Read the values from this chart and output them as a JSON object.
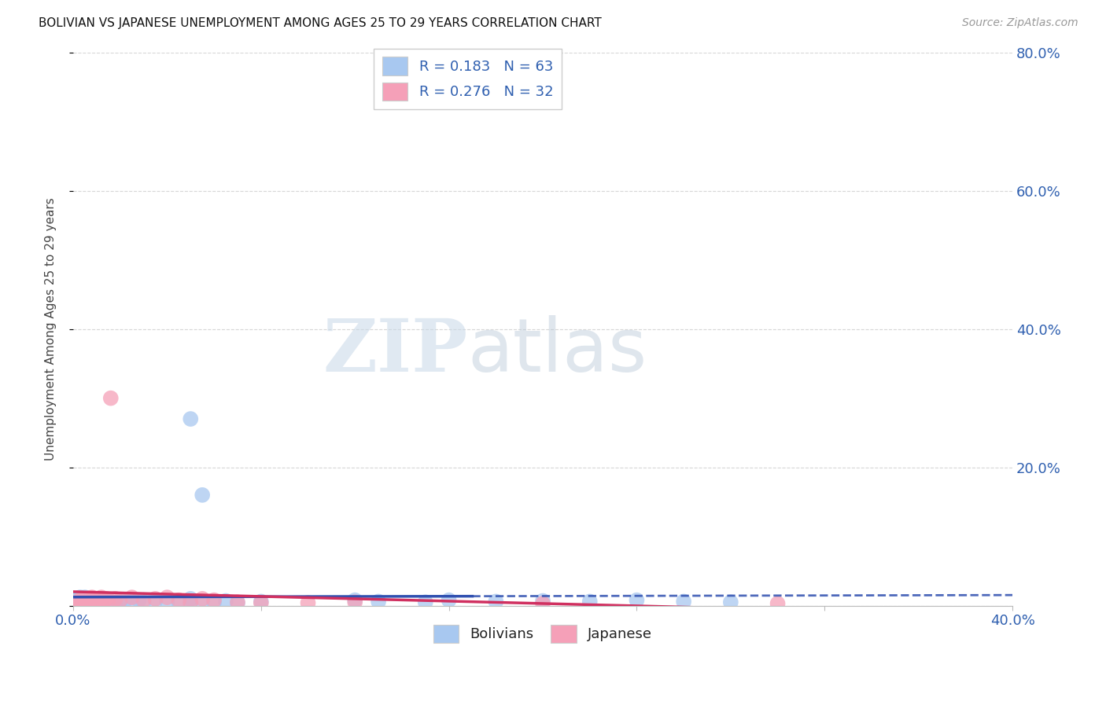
{
  "title": "BOLIVIAN VS JAPANESE UNEMPLOYMENT AMONG AGES 25 TO 29 YEARS CORRELATION CHART",
  "source": "Source: ZipAtlas.com",
  "ylabel": "Unemployment Among Ages 25 to 29 years",
  "xlim": [
    0.0,
    0.4
  ],
  "ylim": [
    0.0,
    0.8
  ],
  "x_ticks": [
    0.0,
    0.08,
    0.16,
    0.24,
    0.32,
    0.4
  ],
  "x_tick_labels": [
    "0.0%",
    "",
    "",
    "",
    "",
    "40.0%"
  ],
  "y_ticks_right": [
    0.0,
    0.2,
    0.4,
    0.6,
    0.8
  ],
  "y_tick_labels_right": [
    "",
    "20.0%",
    "40.0%",
    "60.0%",
    "80.0%"
  ],
  "bolivians_color": "#a8c8f0",
  "japanese_color": "#f5a0b8",
  "bolivians_line_color": "#3050b0",
  "japanese_line_color": "#d03060",
  "bolivians_x": [
    0.001,
    0.001,
    0.001,
    0.002,
    0.002,
    0.002,
    0.003,
    0.003,
    0.003,
    0.004,
    0.004,
    0.004,
    0.005,
    0.005,
    0.005,
    0.005,
    0.006,
    0.006,
    0.006,
    0.007,
    0.007,
    0.007,
    0.008,
    0.008,
    0.009,
    0.009,
    0.01,
    0.01,
    0.011,
    0.012,
    0.013,
    0.013,
    0.014,
    0.015,
    0.016,
    0.018,
    0.02,
    0.022,
    0.025,
    0.028,
    0.03,
    0.035,
    0.04,
    0.045,
    0.05,
    0.055,
    0.06,
    0.065,
    0.07,
    0.08,
    0.05,
    0.055,
    0.12,
    0.13,
    0.15,
    0.16,
    0.18,
    0.2,
    0.22,
    0.24,
    0.26,
    0.28,
    0.05
  ],
  "bolivians_y": [
    0.005,
    0.003,
    0.008,
    0.002,
    0.006,
    0.01,
    0.004,
    0.008,
    0.012,
    0.003,
    0.007,
    0.01,
    0.002,
    0.005,
    0.008,
    0.012,
    0.004,
    0.007,
    0.01,
    0.003,
    0.006,
    0.009,
    0.004,
    0.008,
    0.003,
    0.007,
    0.004,
    0.008,
    0.005,
    0.006,
    0.004,
    0.008,
    0.005,
    0.003,
    0.006,
    0.004,
    0.005,
    0.007,
    0.006,
    0.008,
    0.005,
    0.007,
    0.006,
    0.005,
    0.004,
    0.006,
    0.005,
    0.007,
    0.004,
    0.006,
    0.27,
    0.16,
    0.008,
    0.006,
    0.005,
    0.008,
    0.006,
    0.007,
    0.006,
    0.008,
    0.006,
    0.005,
    0.01
  ],
  "japanese_x": [
    0.001,
    0.002,
    0.003,
    0.004,
    0.005,
    0.006,
    0.007,
    0.008,
    0.009,
    0.01,
    0.011,
    0.012,
    0.013,
    0.014,
    0.015,
    0.016,
    0.018,
    0.02,
    0.025,
    0.03,
    0.035,
    0.04,
    0.045,
    0.05,
    0.055,
    0.06,
    0.07,
    0.08,
    0.1,
    0.12,
    0.2,
    0.3
  ],
  "japanese_y": [
    0.004,
    0.006,
    0.008,
    0.003,
    0.01,
    0.005,
    0.007,
    0.012,
    0.006,
    0.009,
    0.008,
    0.012,
    0.005,
    0.01,
    0.008,
    0.3,
    0.01,
    0.008,
    0.012,
    0.008,
    0.01,
    0.012,
    0.008,
    0.005,
    0.01,
    0.008,
    0.005,
    0.004,
    0.004,
    0.005,
    0.003,
    0.003
  ],
  "watermark_zip": "ZIP",
  "watermark_atlas": "atlas",
  "background_color": "#ffffff",
  "grid_color": "#cccccc",
  "legend_label_bolivians": "R = 0.183   N = 63",
  "legend_label_japanese": "R = 0.276   N = 32",
  "bottom_label_bolivians": "Bolivians",
  "bottom_label_japanese": "Japanese"
}
